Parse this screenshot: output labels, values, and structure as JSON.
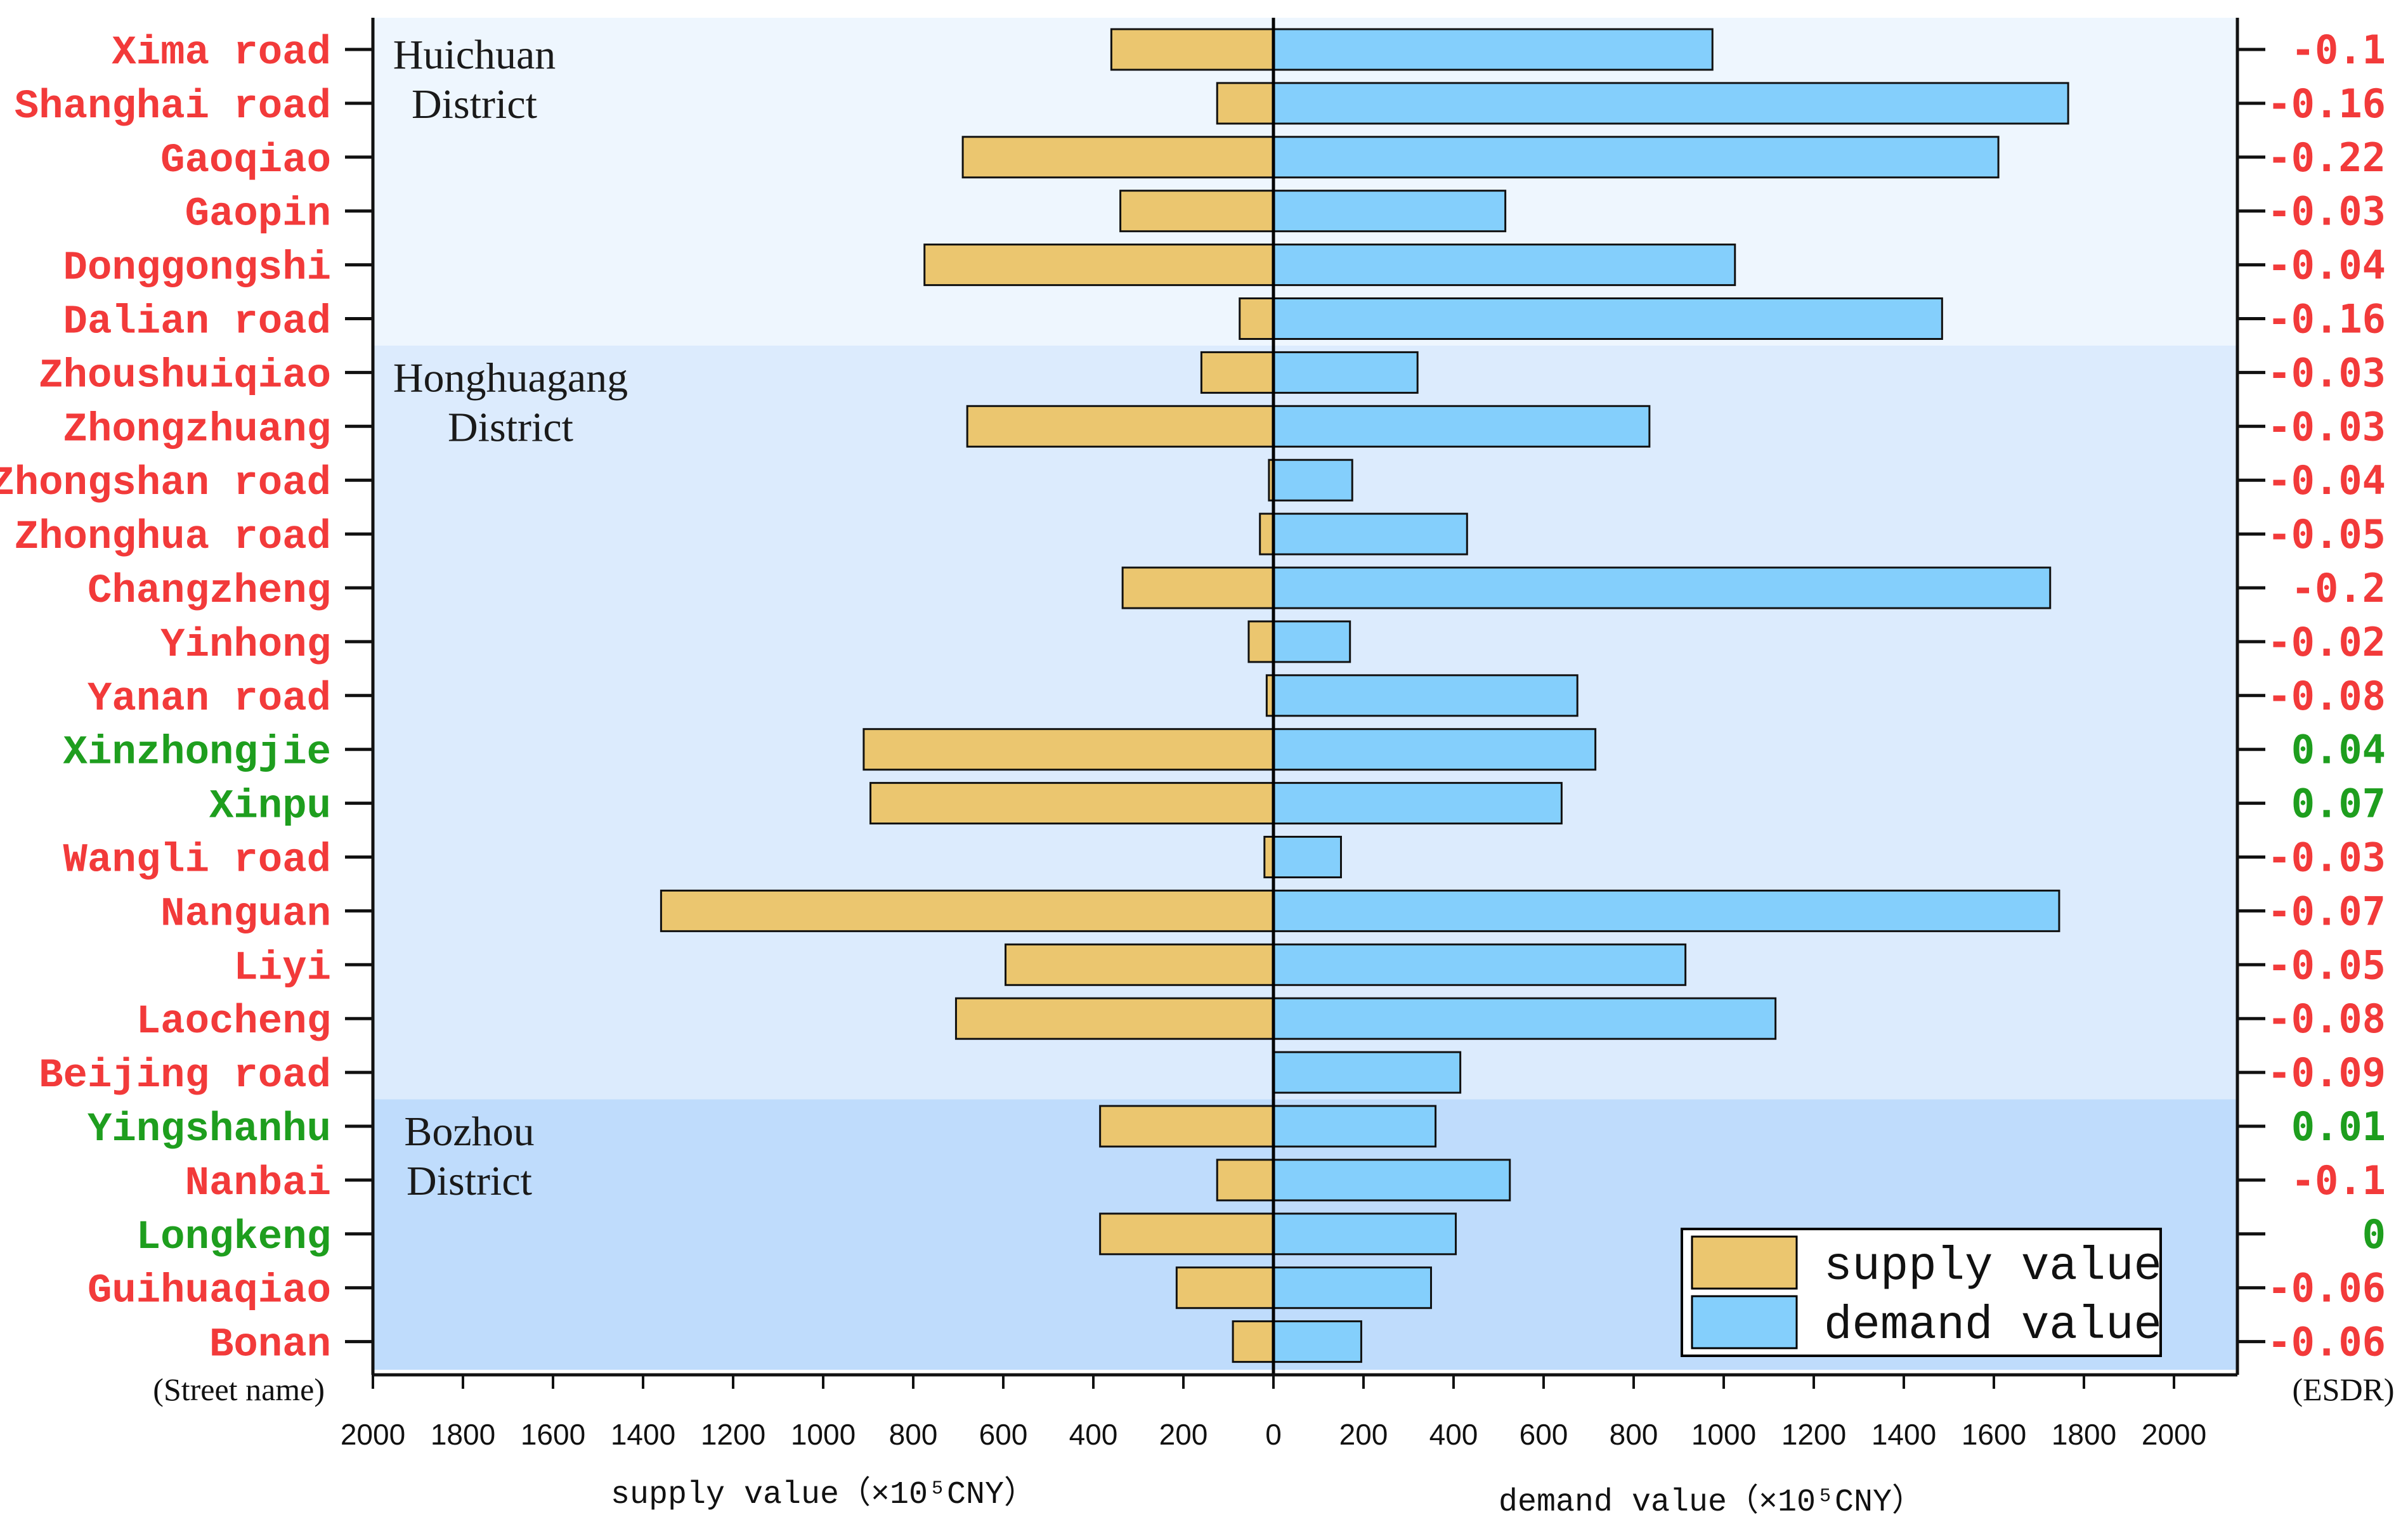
{
  "chart_data": {
    "type": "bar",
    "orientation": "horizontal-diverging",
    "colors": {
      "supply": "#EBC66F",
      "demand": "#84CFFC",
      "positive": "#1E9E1E",
      "negative": "#F23A3A",
      "huichuan_bg": "#EEF6FE",
      "honghuagang_bg": "#DCEBFD",
      "bozhou_bg": "#BFDCFC"
    },
    "streets": [
      {
        "name": "Xima road",
        "supply": 360,
        "demand": 975,
        "esdr": "-0.1",
        "sign": "negative"
      },
      {
        "name": "Shanghai road",
        "supply": 125,
        "demand": 1765,
        "esdr": "-0.16",
        "sign": "negative"
      },
      {
        "name": "Gaoqiao",
        "supply": 690,
        "demand": 1610,
        "esdr": "-0.22",
        "sign": "negative"
      },
      {
        "name": "Gaopin",
        "supply": 340,
        "demand": 515,
        "esdr": "-0.03",
        "sign": "negative"
      },
      {
        "name": "Donggongshi",
        "supply": 775,
        "demand": 1025,
        "esdr": "-0.04",
        "sign": "negative"
      },
      {
        "name": "Dalian road",
        "supply": 75,
        "demand": 1485,
        "esdr": "-0.16",
        "sign": "negative"
      },
      {
        "name": "Zhoushuiqiao",
        "supply": 160,
        "demand": 320,
        "esdr": "-0.03",
        "sign": "negative"
      },
      {
        "name": "Zhongzhuang",
        "supply": 680,
        "demand": 835,
        "esdr": "-0.03",
        "sign": "negative"
      },
      {
        "name": "Zhongshan road",
        "supply": 10,
        "demand": 175,
        "esdr": "-0.04",
        "sign": "negative"
      },
      {
        "name": "Zhonghua road",
        "supply": 30,
        "demand": 430,
        "esdr": "-0.05",
        "sign": "negative"
      },
      {
        "name": "Changzheng",
        "supply": 335,
        "demand": 1725,
        "esdr": "-0.2",
        "sign": "negative"
      },
      {
        "name": "Yinhong",
        "supply": 55,
        "demand": 170,
        "esdr": "-0.02",
        "sign": "negative"
      },
      {
        "name": "Yanan road",
        "supply": 15,
        "demand": 675,
        "esdr": "-0.08",
        "sign": "negative"
      },
      {
        "name": "Xinzhongjie",
        "supply": 910,
        "demand": 715,
        "esdr": "0.04",
        "sign": "positive"
      },
      {
        "name": "Xinpu",
        "supply": 895,
        "demand": 640,
        "esdr": "0.07",
        "sign": "positive"
      },
      {
        "name": "Wangli road",
        "supply": 20,
        "demand": 150,
        "esdr": "-0.03",
        "sign": "negative"
      },
      {
        "name": "Nanguan",
        "supply": 1360,
        "demand": 1745,
        "esdr": "-0.07",
        "sign": "negative"
      },
      {
        "name": "Liyi",
        "supply": 595,
        "demand": 915,
        "esdr": "-0.05",
        "sign": "negative"
      },
      {
        "name": "Laocheng",
        "supply": 705,
        "demand": 1115,
        "esdr": "-0.08",
        "sign": "negative"
      },
      {
        "name": "Beijing road",
        "supply": 0,
        "demand": 415,
        "esdr": "-0.09",
        "sign": "negative"
      },
      {
        "name": "Yingshanhu",
        "supply": 385,
        "demand": 360,
        "esdr": "0.01",
        "sign": "positive"
      },
      {
        "name": "Nanbai",
        "supply": 125,
        "demand": 525,
        "esdr": "-0.1",
        "sign": "negative"
      },
      {
        "name": "Longkeng",
        "supply": 385,
        "demand": 405,
        "esdr": "0",
        "sign": "positive"
      },
      {
        "name": "Guihuaqiao",
        "supply": 215,
        "demand": 350,
        "esdr": "-0.06",
        "sign": "negative"
      },
      {
        "name": "Bonan",
        "supply": 90,
        "demand": 195,
        "esdr": "-0.06",
        "sign": "negative"
      }
    ],
    "districts": [
      {
        "line1": "Huichuan",
        "line2": "District",
        "first_index": 0,
        "last_index": 5,
        "bg_key": "huichuan_bg"
      },
      {
        "line1": "Honghuagang",
        "line2": "District",
        "first_index": 6,
        "last_index": 19,
        "bg_key": "honghuagang_bg"
      },
      {
        "line1": "Bozhou",
        "line2": "District",
        "first_index": 20,
        "last_index": 24,
        "bg_key": "bozhou_bg"
      }
    ],
    "x_range": [
      0,
      2000
    ],
    "x_ticks": [
      "0",
      "200",
      "400",
      "600",
      "800",
      "1000",
      "1200",
      "1400",
      "1600",
      "1800",
      "2000"
    ],
    "left_caption": "(Street name)",
    "right_caption": "(ESDR)",
    "supply_axis_label": "supply value（×10⁵CNY）",
    "demand_axis_label": "demand value（×10⁵CNY）",
    "legend": {
      "supply": "supply value",
      "demand": "demand value"
    }
  }
}
